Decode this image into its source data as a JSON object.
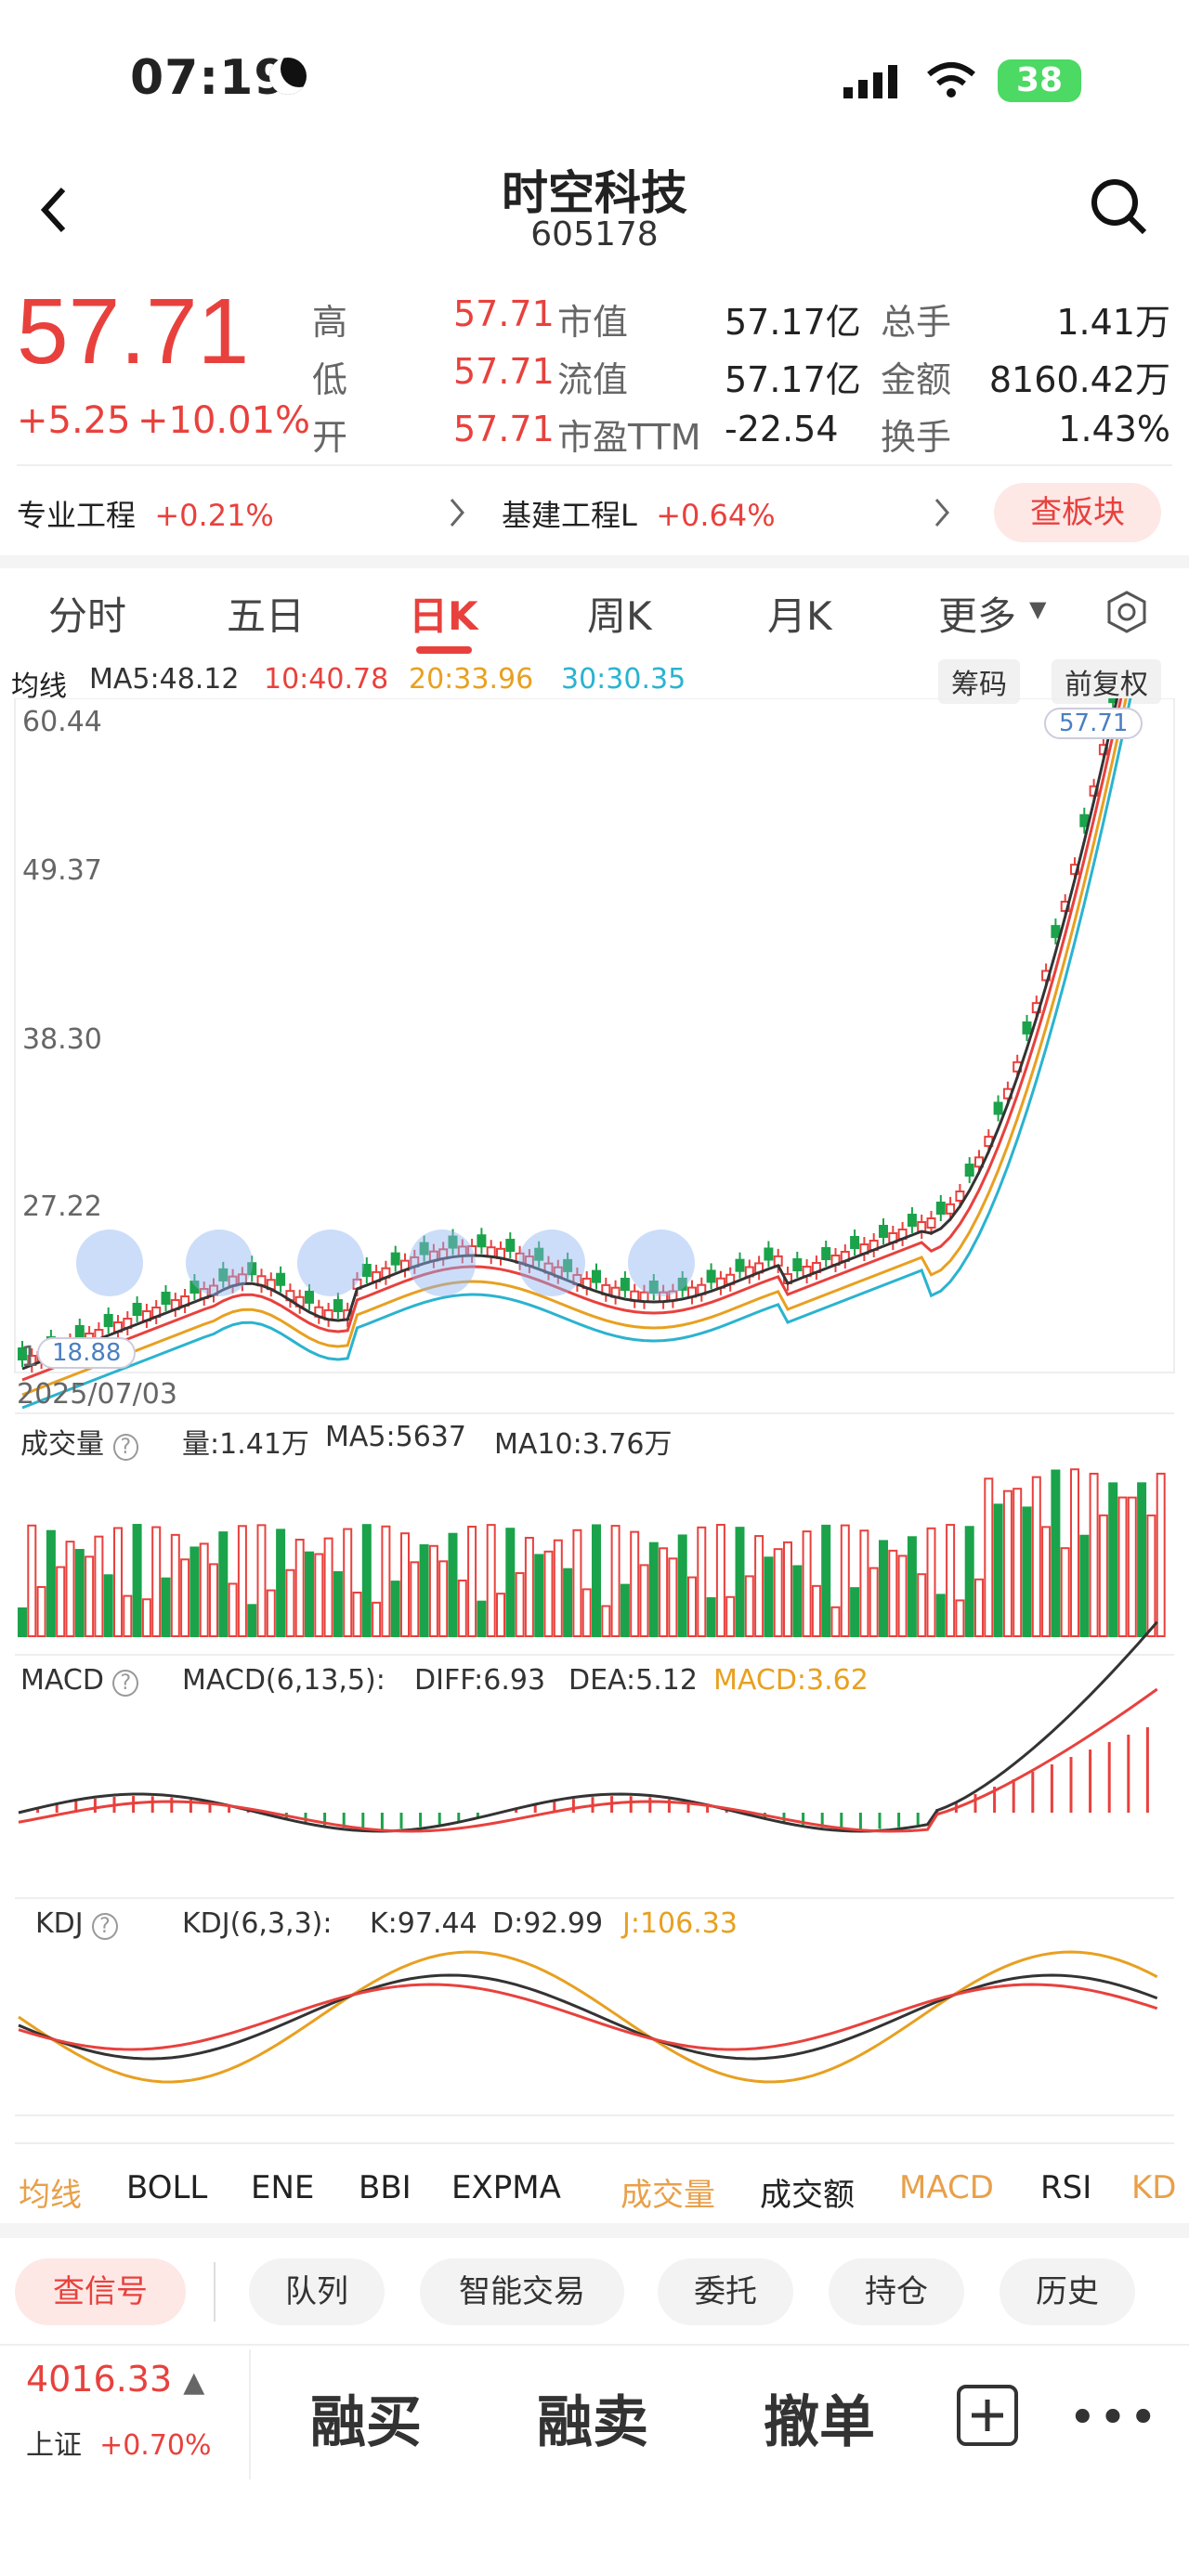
{
  "status": {
    "time": "07:19",
    "battery": "38"
  },
  "header": {
    "back_icon": "chevron-left-icon",
    "title": "时空科技",
    "code": "605178",
    "search_icon": "search-icon"
  },
  "quote": {
    "price": "57.71",
    "change": "+5.25",
    "change_pct": "+10.01%",
    "rows": [
      {
        "l1": "高",
        "v1": "57.71",
        "l2": "市值",
        "v2": "57.17亿",
        "l3": "总手",
        "v3": "1.41万"
      },
      {
        "l1": "低",
        "v1": "57.71",
        "l2": "流值",
        "v2": "57.17亿",
        "l3": "金额",
        "v3": "8160.42万"
      },
      {
        "l1": "开",
        "v1": "57.71",
        "l2": "市盈TTM",
        "v2": "-22.54",
        "l3": "换手",
        "v3": "1.43%"
      }
    ],
    "colors": {
      "up": "#e8413d",
      "down": "#1aa34a"
    }
  },
  "sectors": {
    "s1_name": "专业工程",
    "s1_pct": "+0.21%",
    "s2_name": "基建工程L",
    "s2_pct": "+0.64%",
    "button": "查板块"
  },
  "tabs": [
    "分时",
    "五日",
    "日K",
    "周K",
    "月K",
    "更多"
  ],
  "ma": {
    "label": "均线",
    "ma5": "MA5:48.12",
    "ma10": "10:40.78",
    "ma20": "20:33.96",
    "ma30": "30:30.35",
    "btn1": "筹码",
    "btn2": "前复权"
  },
  "kchart": {
    "y1": "60.44",
    "y2": "49.37",
    "y3": "38.30",
    "y4": "27.22",
    "low_tag": "18.88",
    "high_tag": "57.71",
    "date": "2025/07/03",
    "y5": "1"
  },
  "vol": {
    "label": "成交量",
    "v": "量:1.41万",
    "ma5": "MA5:5637",
    "ma10": "MA10:3.76万"
  },
  "macd": {
    "label": "MACD",
    "params": "MACD(6,13,5):",
    "diff": "DIFF:6.93",
    "dea": "DEA:5.12",
    "macd": "MACD:3.62"
  },
  "kdj": {
    "label": "KDJ",
    "params": "KDJ(6,3,3):",
    "k": "K:97.44",
    "d": "D:92.99",
    "j": "J:106.33"
  },
  "indicator_tabs": [
    "均线",
    "BOLL",
    "ENE",
    "BBI",
    "EXPMA",
    "成交量",
    "成交额",
    "MACD",
    "RSI",
    "KD"
  ],
  "chips": [
    "查信号",
    "队列",
    "智能交易",
    "委托",
    "持仓",
    "历史"
  ],
  "index": {
    "value": "4016.33",
    "name": "上证",
    "pct": "+0.70%"
  },
  "actions": {
    "buy": "融买",
    "sell": "融卖",
    "cancel": "撤单"
  }
}
